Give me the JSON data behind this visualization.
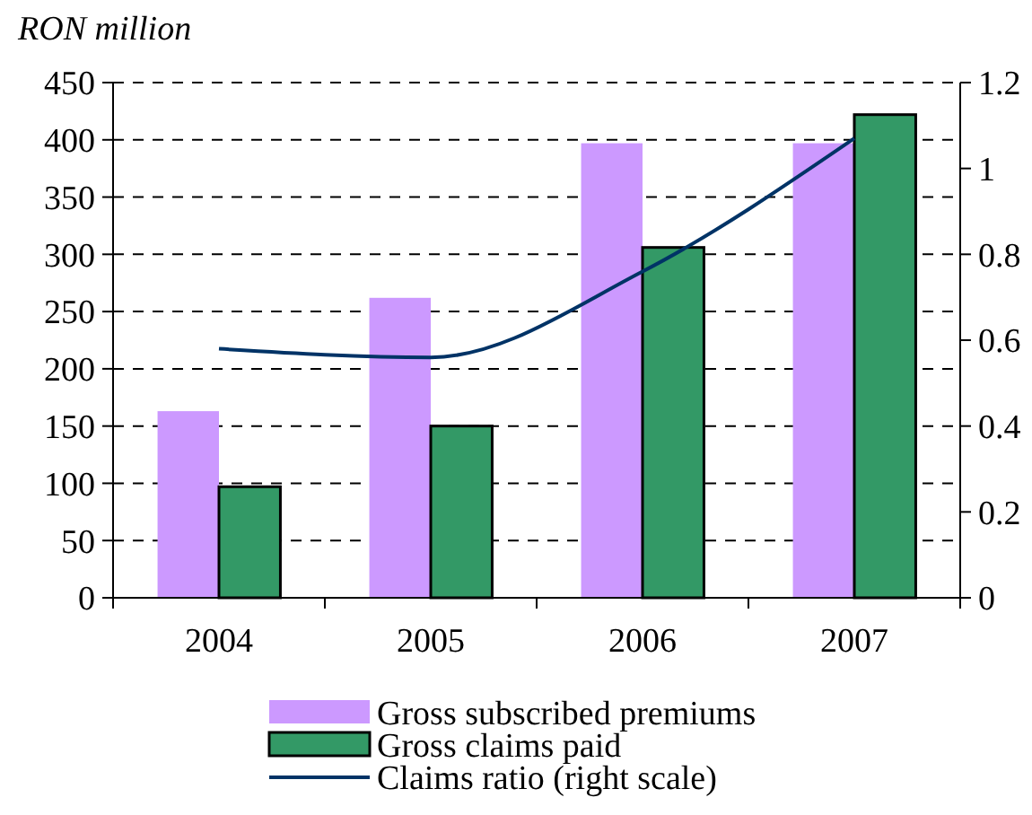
{
  "chart_data": {
    "type": "bar",
    "ylabel": "RON million",
    "categories": [
      "2004",
      "2005",
      "2006",
      "2007"
    ],
    "series": [
      {
        "name": "Gross subscribed premiums",
        "color": "#cc99ff",
        "values": [
          163,
          262,
          397,
          397
        ]
      },
      {
        "name": "Gross claims paid",
        "color": "#339966",
        "values": [
          97,
          150,
          306,
          422
        ]
      },
      {
        "name": "Claims ratio (right scale)",
        "color": "#003366",
        "type": "line",
        "axis": "y2",
        "values": [
          0.58,
          0.56,
          0.76,
          1.07
        ]
      }
    ],
    "ylim": [
      0,
      450
    ],
    "yticks": [
      0,
      50,
      100,
      150,
      200,
      250,
      300,
      350,
      400,
      450
    ],
    "y2lim": [
      0,
      1.2
    ],
    "y2ticks": [
      0,
      0.2,
      0.4,
      0.6,
      0.8,
      1,
      1.2
    ],
    "grid": "y",
    "legend": "bottom"
  }
}
